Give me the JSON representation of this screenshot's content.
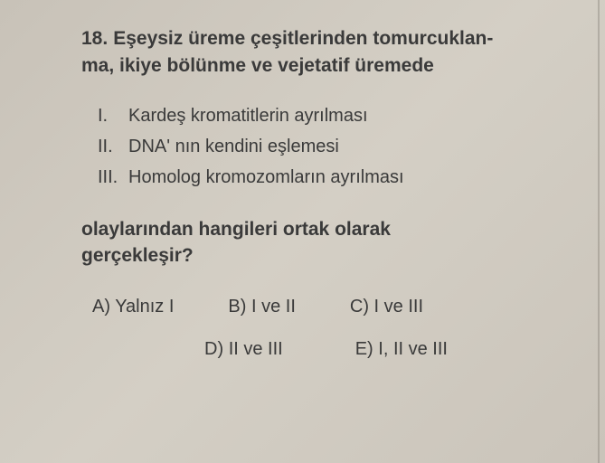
{
  "question": {
    "number": "18.",
    "stem_line1": "Eşeysiz üreme çeşitlerinden tomurcuklan-",
    "stem_line2": "ma, ikiye bölünme ve vejetatif üremede",
    "romans": [
      {
        "label": "I.",
        "text": "Kardeş kromatitlerin ayrılması"
      },
      {
        "label": "II.",
        "text": "DNA' nın kendini eşlemesi"
      },
      {
        "label": "III.",
        "text": "Homolog kromozomların ayrılması"
      }
    ],
    "closing_line1": "olaylarından hangileri ortak olarak",
    "closing_line2": "gerçekleşir?",
    "options": {
      "A": "A) Yalnız I",
      "B": "B) I ve II",
      "C": "C) I ve III",
      "D": "D) II ve III",
      "E": "E) I, II ve III"
    }
  }
}
